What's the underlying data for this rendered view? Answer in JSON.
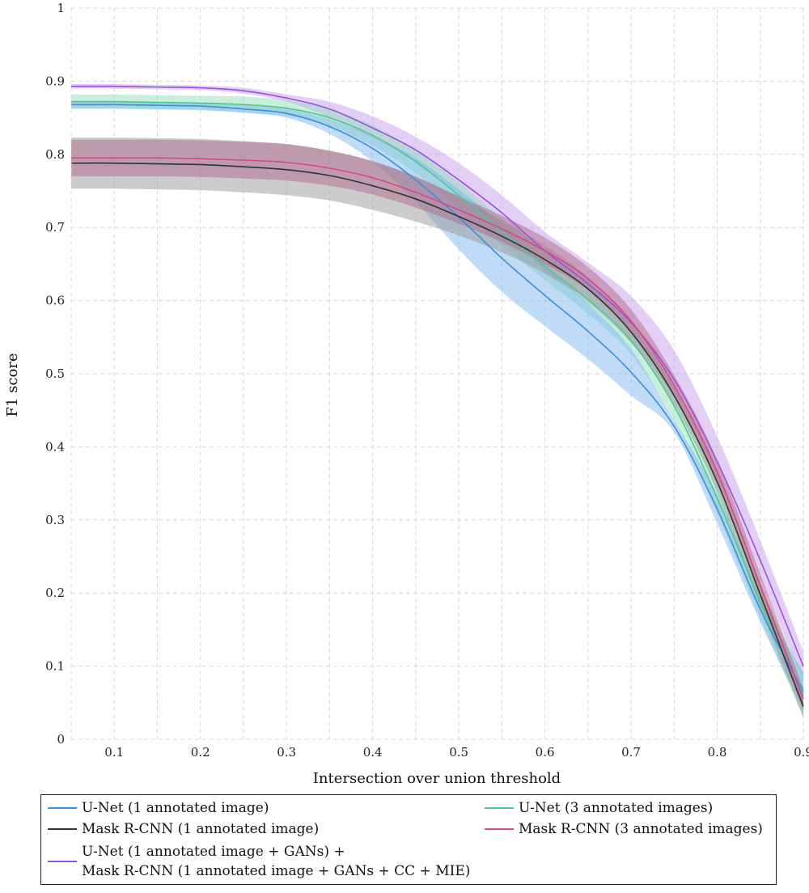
{
  "chart_data": {
    "type": "line",
    "xlabel": "Intersection over union threshold",
    "ylabel": "F1 score",
    "xlim": [
      0.05,
      0.9
    ],
    "ylim": [
      0,
      1
    ],
    "x_ticks": [
      0.1,
      0.2,
      0.3,
      0.4,
      0.5,
      0.6,
      0.7,
      0.8,
      0.9
    ],
    "x_tick_labels": [
      "0.1",
      "0.2",
      "0.3",
      "0.4",
      "0.5",
      "0.6",
      "0.7",
      "0.8",
      "0.9"
    ],
    "y_ticks": [
      0,
      0.1,
      0.2,
      0.3,
      0.4,
      0.5,
      0.6,
      0.7,
      0.8,
      0.9,
      1
    ],
    "y_tick_labels": [
      "0",
      "0.1",
      "0.2",
      "0.3",
      "0.4",
      "0.5",
      "0.6",
      "0.7",
      "0.8",
      "0.9",
      "1"
    ],
    "grid": true,
    "legend_position": "bottom",
    "x": [
      0.05,
      0.1,
      0.15,
      0.2,
      0.25,
      0.3,
      0.35,
      0.4,
      0.45,
      0.5,
      0.55,
      0.6,
      0.65,
      0.7,
      0.75,
      0.8,
      0.85,
      0.9
    ],
    "series": [
      {
        "name": "U-Net (1 annotated image)",
        "color": "#3b8fde",
        "band_color": "#7fb8ee",
        "values": [
          0.868,
          0.868,
          0.867,
          0.866,
          0.862,
          0.856,
          0.838,
          0.808,
          0.765,
          0.714,
          0.658,
          0.607,
          0.558,
          0.502,
          0.428,
          0.315,
          0.178,
          0.065
        ],
        "lower": [
          0.863,
          0.863,
          0.862,
          0.861,
          0.857,
          0.85,
          0.828,
          0.79,
          0.735,
          0.67,
          0.612,
          0.565,
          0.52,
          0.47,
          0.42,
          0.295,
          0.16,
          0.04
        ],
        "upper": [
          0.873,
          0.873,
          0.872,
          0.871,
          0.867,
          0.862,
          0.848,
          0.826,
          0.795,
          0.752,
          0.704,
          0.65,
          0.596,
          0.534,
          0.436,
          0.335,
          0.196,
          0.09
        ]
      },
      {
        "name": "U-Net (3 annotated images)",
        "color": "#4cc98f",
        "band_color": "#8fdfb8",
        "values": [
          0.872,
          0.872,
          0.871,
          0.87,
          0.868,
          0.863,
          0.85,
          0.826,
          0.79,
          0.744,
          0.694,
          0.647,
          0.601,
          0.545,
          0.456,
          0.33,
          0.188,
          0.06
        ],
        "lower": [
          0.862,
          0.862,
          0.861,
          0.86,
          0.857,
          0.852,
          0.838,
          0.812,
          0.774,
          0.726,
          0.676,
          0.628,
          0.582,
          0.526,
          0.436,
          0.309,
          0.166,
          0.03
        ],
        "upper": [
          0.882,
          0.882,
          0.881,
          0.88,
          0.879,
          0.874,
          0.862,
          0.84,
          0.806,
          0.762,
          0.712,
          0.666,
          0.62,
          0.564,
          0.476,
          0.351,
          0.21,
          0.09
        ]
      },
      {
        "name": "Mask R-CNN (1 annotated image)",
        "color": "#333333",
        "band_color": "#999999",
        "values": [
          0.788,
          0.788,
          0.787,
          0.786,
          0.783,
          0.779,
          0.771,
          0.757,
          0.739,
          0.715,
          0.688,
          0.656,
          0.616,
          0.557,
          0.47,
          0.352,
          0.198,
          0.045
        ],
        "lower": [
          0.753,
          0.753,
          0.752,
          0.751,
          0.748,
          0.744,
          0.737,
          0.724,
          0.708,
          0.689,
          0.666,
          0.637,
          0.6,
          0.543,
          0.458,
          0.338,
          0.18,
          0.03
        ],
        "upper": [
          0.823,
          0.823,
          0.822,
          0.821,
          0.818,
          0.814,
          0.805,
          0.79,
          0.77,
          0.741,
          0.71,
          0.675,
          0.632,
          0.571,
          0.482,
          0.366,
          0.216,
          0.06
        ]
      },
      {
        "name": "Mask R-CNN (3 annotated images)",
        "color": "#d9468a",
        "band_color": "#b06a8a",
        "values": [
          0.795,
          0.795,
          0.795,
          0.794,
          0.792,
          0.789,
          0.781,
          0.768,
          0.748,
          0.724,
          0.698,
          0.668,
          0.63,
          0.572,
          0.484,
          0.366,
          0.21,
          0.055
        ],
        "lower": [
          0.77,
          0.77,
          0.77,
          0.769,
          0.767,
          0.764,
          0.757,
          0.745,
          0.727,
          0.705,
          0.68,
          0.65,
          0.614,
          0.556,
          0.47,
          0.35,
          0.194,
          0.04
        ],
        "upper": [
          0.82,
          0.82,
          0.82,
          0.819,
          0.817,
          0.814,
          0.805,
          0.791,
          0.769,
          0.743,
          0.716,
          0.686,
          0.646,
          0.588,
          0.498,
          0.382,
          0.226,
          0.07
        ]
      },
      {
        "name": "U-Net (1 annotated image + GANs) + Mask R-CNN (1 annotated image + GANs + CC + MIE)",
        "legend_lines": [
          "U-Net (1 annotated image + GANs) +",
          "Mask R-CNN (1 annotated image + GANs + CC + MIE)"
        ],
        "color": "#9b51e0",
        "band_color": "#c8a0ee",
        "values": [
          0.893,
          0.893,
          0.892,
          0.891,
          0.887,
          0.877,
          0.862,
          0.836,
          0.806,
          0.765,
          0.72,
          0.668,
          0.623,
          0.57,
          0.492,
          0.38,
          0.245,
          0.1
        ],
        "lower": [
          0.89,
          0.89,
          0.889,
          0.888,
          0.883,
          0.872,
          0.85,
          0.822,
          0.79,
          0.746,
          0.698,
          0.64,
          0.596,
          0.542,
          0.468,
          0.356,
          0.22,
          0.08
        ],
        "upper": [
          0.896,
          0.896,
          0.895,
          0.894,
          0.891,
          0.882,
          0.872,
          0.852,
          0.824,
          0.788,
          0.744,
          0.694,
          0.652,
          0.606,
          0.532,
          0.414,
          0.272,
          0.12
        ]
      }
    ]
  }
}
